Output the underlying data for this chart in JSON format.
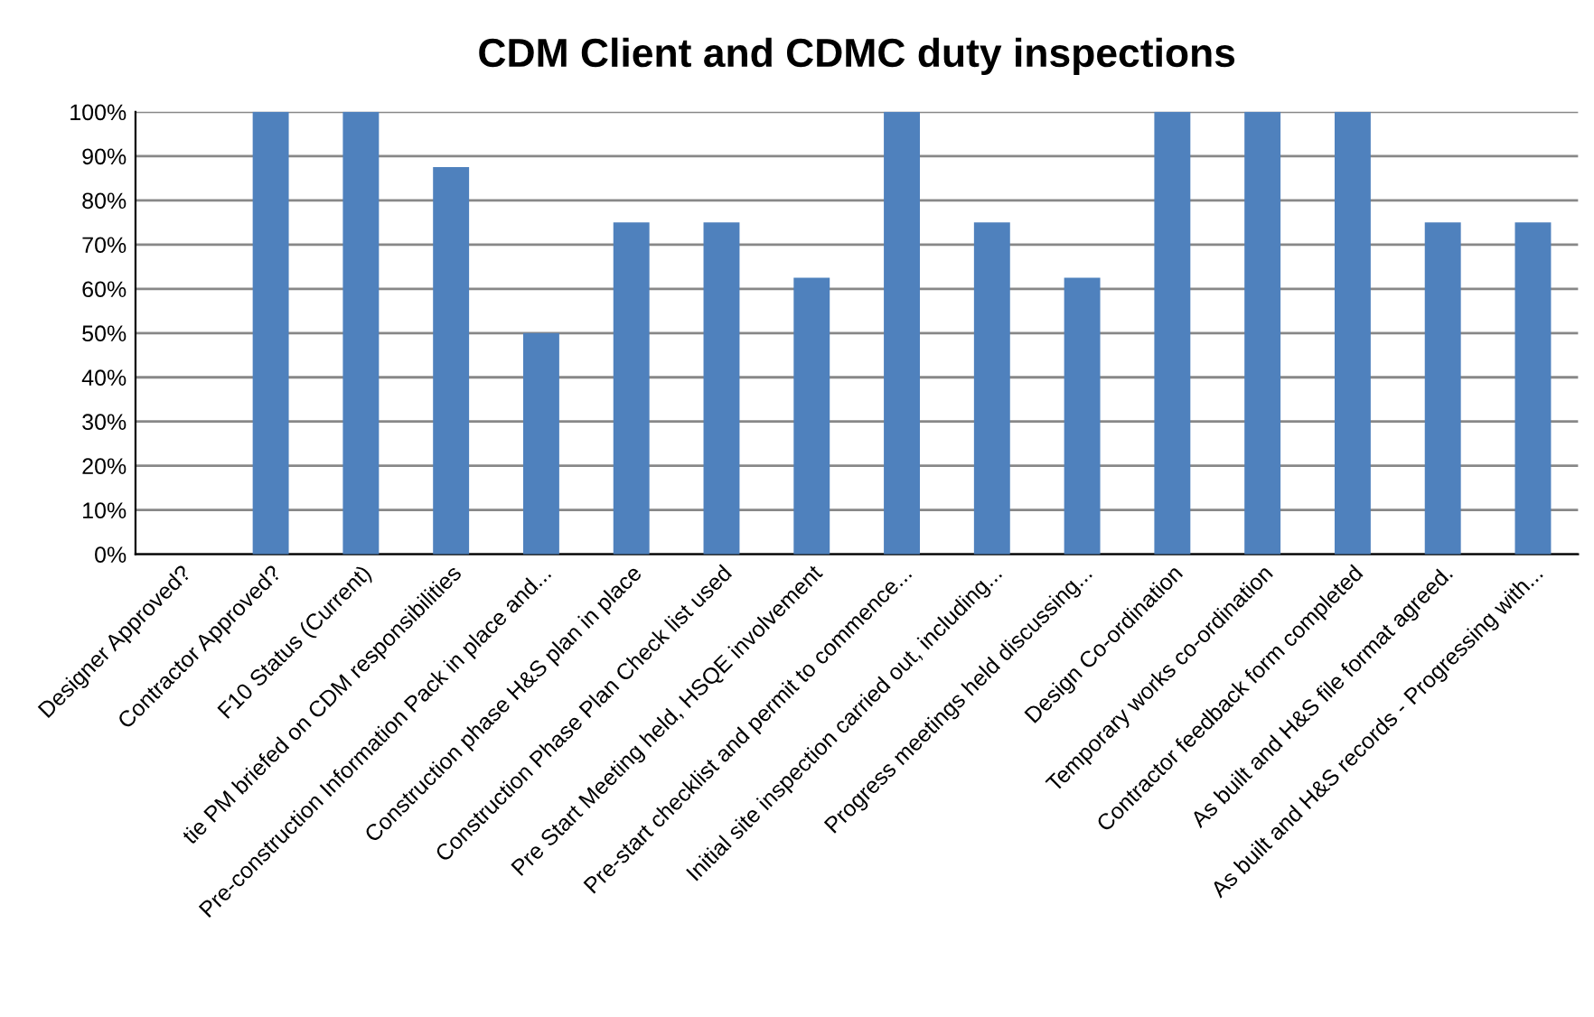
{
  "chart_data": {
    "type": "bar",
    "title": "CDM Client and CDMC duty inspections",
    "categories": [
      "Designer Approved?",
      "Contractor Approved?",
      "F10 Status (Current)",
      "tie PM briefed on CDM responsibilities",
      "Pre-construction Information Pack in place and...",
      "Construction phase H&S plan in place",
      "Construction Phase Plan Check list used",
      "Pre Start Meeting held, HSQE involvement",
      "Pre-start checklist and permit to commence...",
      "Initial site inspection carried out, including...",
      "Progress meetings held discussing...",
      "Design Co-ordination",
      "Temporary works co-ordination",
      "Contractor feedback form completed",
      "As built and H&S file format agreed.",
      "As built and H&S records - Progressing with..."
    ],
    "values": [
      0,
      100,
      100,
      87.5,
      50,
      75,
      75,
      62.5,
      100,
      75,
      62.5,
      100,
      100,
      100,
      75,
      75
    ],
    "color": "#4f81bd",
    "ylim": [
      0,
      100
    ],
    "yticks": [
      {
        "value": 0,
        "label": "0%"
      },
      {
        "value": 10,
        "label": "10%"
      },
      {
        "value": 20,
        "label": "20%"
      },
      {
        "value": 30,
        "label": "30%"
      },
      {
        "value": 40,
        "label": "40%"
      },
      {
        "value": 50,
        "label": "50%"
      },
      {
        "value": 60,
        "label": "60%"
      },
      {
        "value": 70,
        "label": "70%"
      },
      {
        "value": 80,
        "label": "80%"
      },
      {
        "value": 90,
        "label": "90%"
      },
      {
        "value": 100,
        "label": "100%"
      }
    ],
    "grid": "y"
  }
}
